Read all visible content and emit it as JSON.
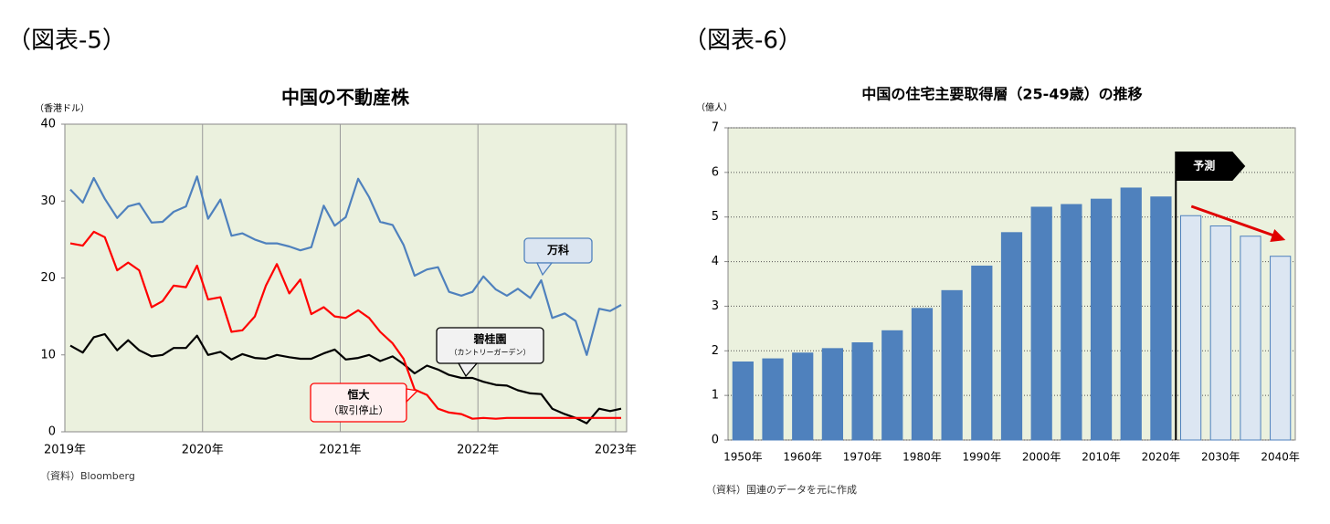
{
  "chart_data": [
    {
      "type": "line",
      "figure_label": "（図表-5）",
      "title": "中国の不動産株",
      "y_unit": "（香港ドル）",
      "source": "（資料）Bloomberg",
      "background": "#ebf1de",
      "grid": "x",
      "xlim": [
        2019,
        2023.08
      ],
      "xticks": [
        {
          "value": 2019,
          "label": "2019年"
        },
        {
          "value": 2020,
          "label": "2020年"
        },
        {
          "value": 2021,
          "label": "2021年"
        },
        {
          "value": 2022,
          "label": "2022年"
        },
        {
          "value": 2023,
          "label": "2023年"
        }
      ],
      "ylim": [
        0,
        40
      ],
      "yticks": [
        0,
        10,
        20,
        30,
        40
      ],
      "x": [
        2019.04,
        2019.13,
        2019.21,
        2019.29,
        2019.38,
        2019.46,
        2019.54,
        2019.63,
        2019.71,
        2019.79,
        2019.88,
        2019.96,
        2020.04,
        2020.13,
        2020.21,
        2020.29,
        2020.38,
        2020.46,
        2020.54,
        2020.63,
        2020.71,
        2020.79,
        2020.88,
        2020.96,
        2021.04,
        2021.13,
        2021.21,
        2021.29,
        2021.38,
        2021.46,
        2021.54,
        2021.63,
        2021.71,
        2021.79,
        2021.88,
        2021.96,
        2022.04,
        2022.13,
        2022.21,
        2022.29,
        2022.38,
        2022.46,
        2022.54,
        2022.63,
        2022.71,
        2022.79,
        2022.88,
        2022.96,
        2023.04
      ],
      "series": [
        {
          "name": "万科",
          "color": "#4f81bd",
          "values": [
            31.5,
            29.8,
            33,
            30.3,
            27.8,
            29.3,
            29.7,
            27.2,
            27.3,
            28.6,
            29.3,
            33.2,
            27.7,
            30.2,
            25.5,
            25.8,
            25,
            24.5,
            24.5,
            24.1,
            23.6,
            24,
            29.4,
            26.8,
            27.9,
            32.9,
            30.5,
            27.3,
            26.9,
            24.3,
            20.3,
            21.1,
            21.4,
            18.2,
            17.7,
            18.2,
            20.2,
            18.5,
            17.7,
            18.6,
            17.4,
            19.7,
            14.8,
            15.4,
            14.4,
            10,
            16,
            15.7,
            16.5
          ]
        },
        {
          "name": "碧桂園",
          "note": "（カントリーガーデン）",
          "color": "#000000",
          "values": [
            11.2,
            10.3,
            12.3,
            12.7,
            10.6,
            11.9,
            10.6,
            9.8,
            10,
            10.9,
            10.9,
            12.5,
            10,
            10.4,
            9.4,
            10.1,
            9.6,
            9.5,
            10,
            9.7,
            9.5,
            9.5,
            10.2,
            10.7,
            9.4,
            9.6,
            10,
            9.2,
            9.8,
            8.8,
            7.6,
            8.6,
            8.1,
            7.4,
            7,
            7,
            6.5,
            6.1,
            6,
            5.4,
            5,
            4.9,
            3,
            2.3,
            1.8,
            1.1,
            3,
            2.7,
            3
          ]
        },
        {
          "name": "恒大",
          "note": "（取引停止）",
          "color": "#ff0000",
          "values": [
            24.5,
            24.2,
            26,
            25.3,
            21,
            22,
            21,
            16.2,
            17,
            19,
            18.8,
            21.6,
            17.2,
            17.5,
            13,
            13.2,
            15,
            19,
            21.8,
            18,
            19.8,
            15.3,
            16.2,
            15,
            14.8,
            15.8,
            14.8,
            13,
            11.5,
            9.5,
            5.5,
            4.8,
            3,
            2.5,
            2.3,
            1.7,
            1.8,
            1.7,
            1.8,
            1.8,
            1.8,
            1.8,
            1.8,
            1.8,
            1.8,
            1.8,
            1.8,
            1.8,
            1.8
          ]
        }
      ]
    },
    {
      "type": "bar",
      "figure_label": "（図表-6）",
      "title": "中国の住宅主要取得層（25-49歳）の推移",
      "y_unit": "（億人）",
      "source": "（資料）国連のデータを元に作成",
      "background": "#ebf1de",
      "grid": "y",
      "edge_color": "#4f81bd",
      "annotation": "予測",
      "categories": [
        "1950年",
        null,
        "1960年",
        null,
        "1970年",
        null,
        "1980年",
        null,
        "1990年",
        null,
        "2000年",
        null,
        "2010年",
        null,
        "2020年",
        null,
        "2030年",
        null,
        "2040年"
      ],
      "values": [
        1.75,
        1.82,
        1.95,
        2.05,
        2.18,
        2.45,
        2.95,
        3.35,
        3.9,
        4.65,
        5.22,
        5.28,
        5.4,
        5.65,
        5.45,
        5.03,
        4.8,
        4.57,
        4.12
      ],
      "colors": [
        "#4f81bd",
        "#4f81bd",
        "#4f81bd",
        "#4f81bd",
        "#4f81bd",
        "#4f81bd",
        "#4f81bd",
        "#4f81bd",
        "#4f81bd",
        "#4f81bd",
        "#4f81bd",
        "#4f81bd",
        "#4f81bd",
        "#4f81bd",
        "#4f81bd",
        "#dce6f2",
        "#dce6f2",
        "#dce6f2",
        "#dce6f2"
      ],
      "ylim": [
        0,
        7
      ],
      "yticks": [
        0,
        1,
        2,
        3,
        4,
        5,
        6,
        7
      ]
    }
  ]
}
